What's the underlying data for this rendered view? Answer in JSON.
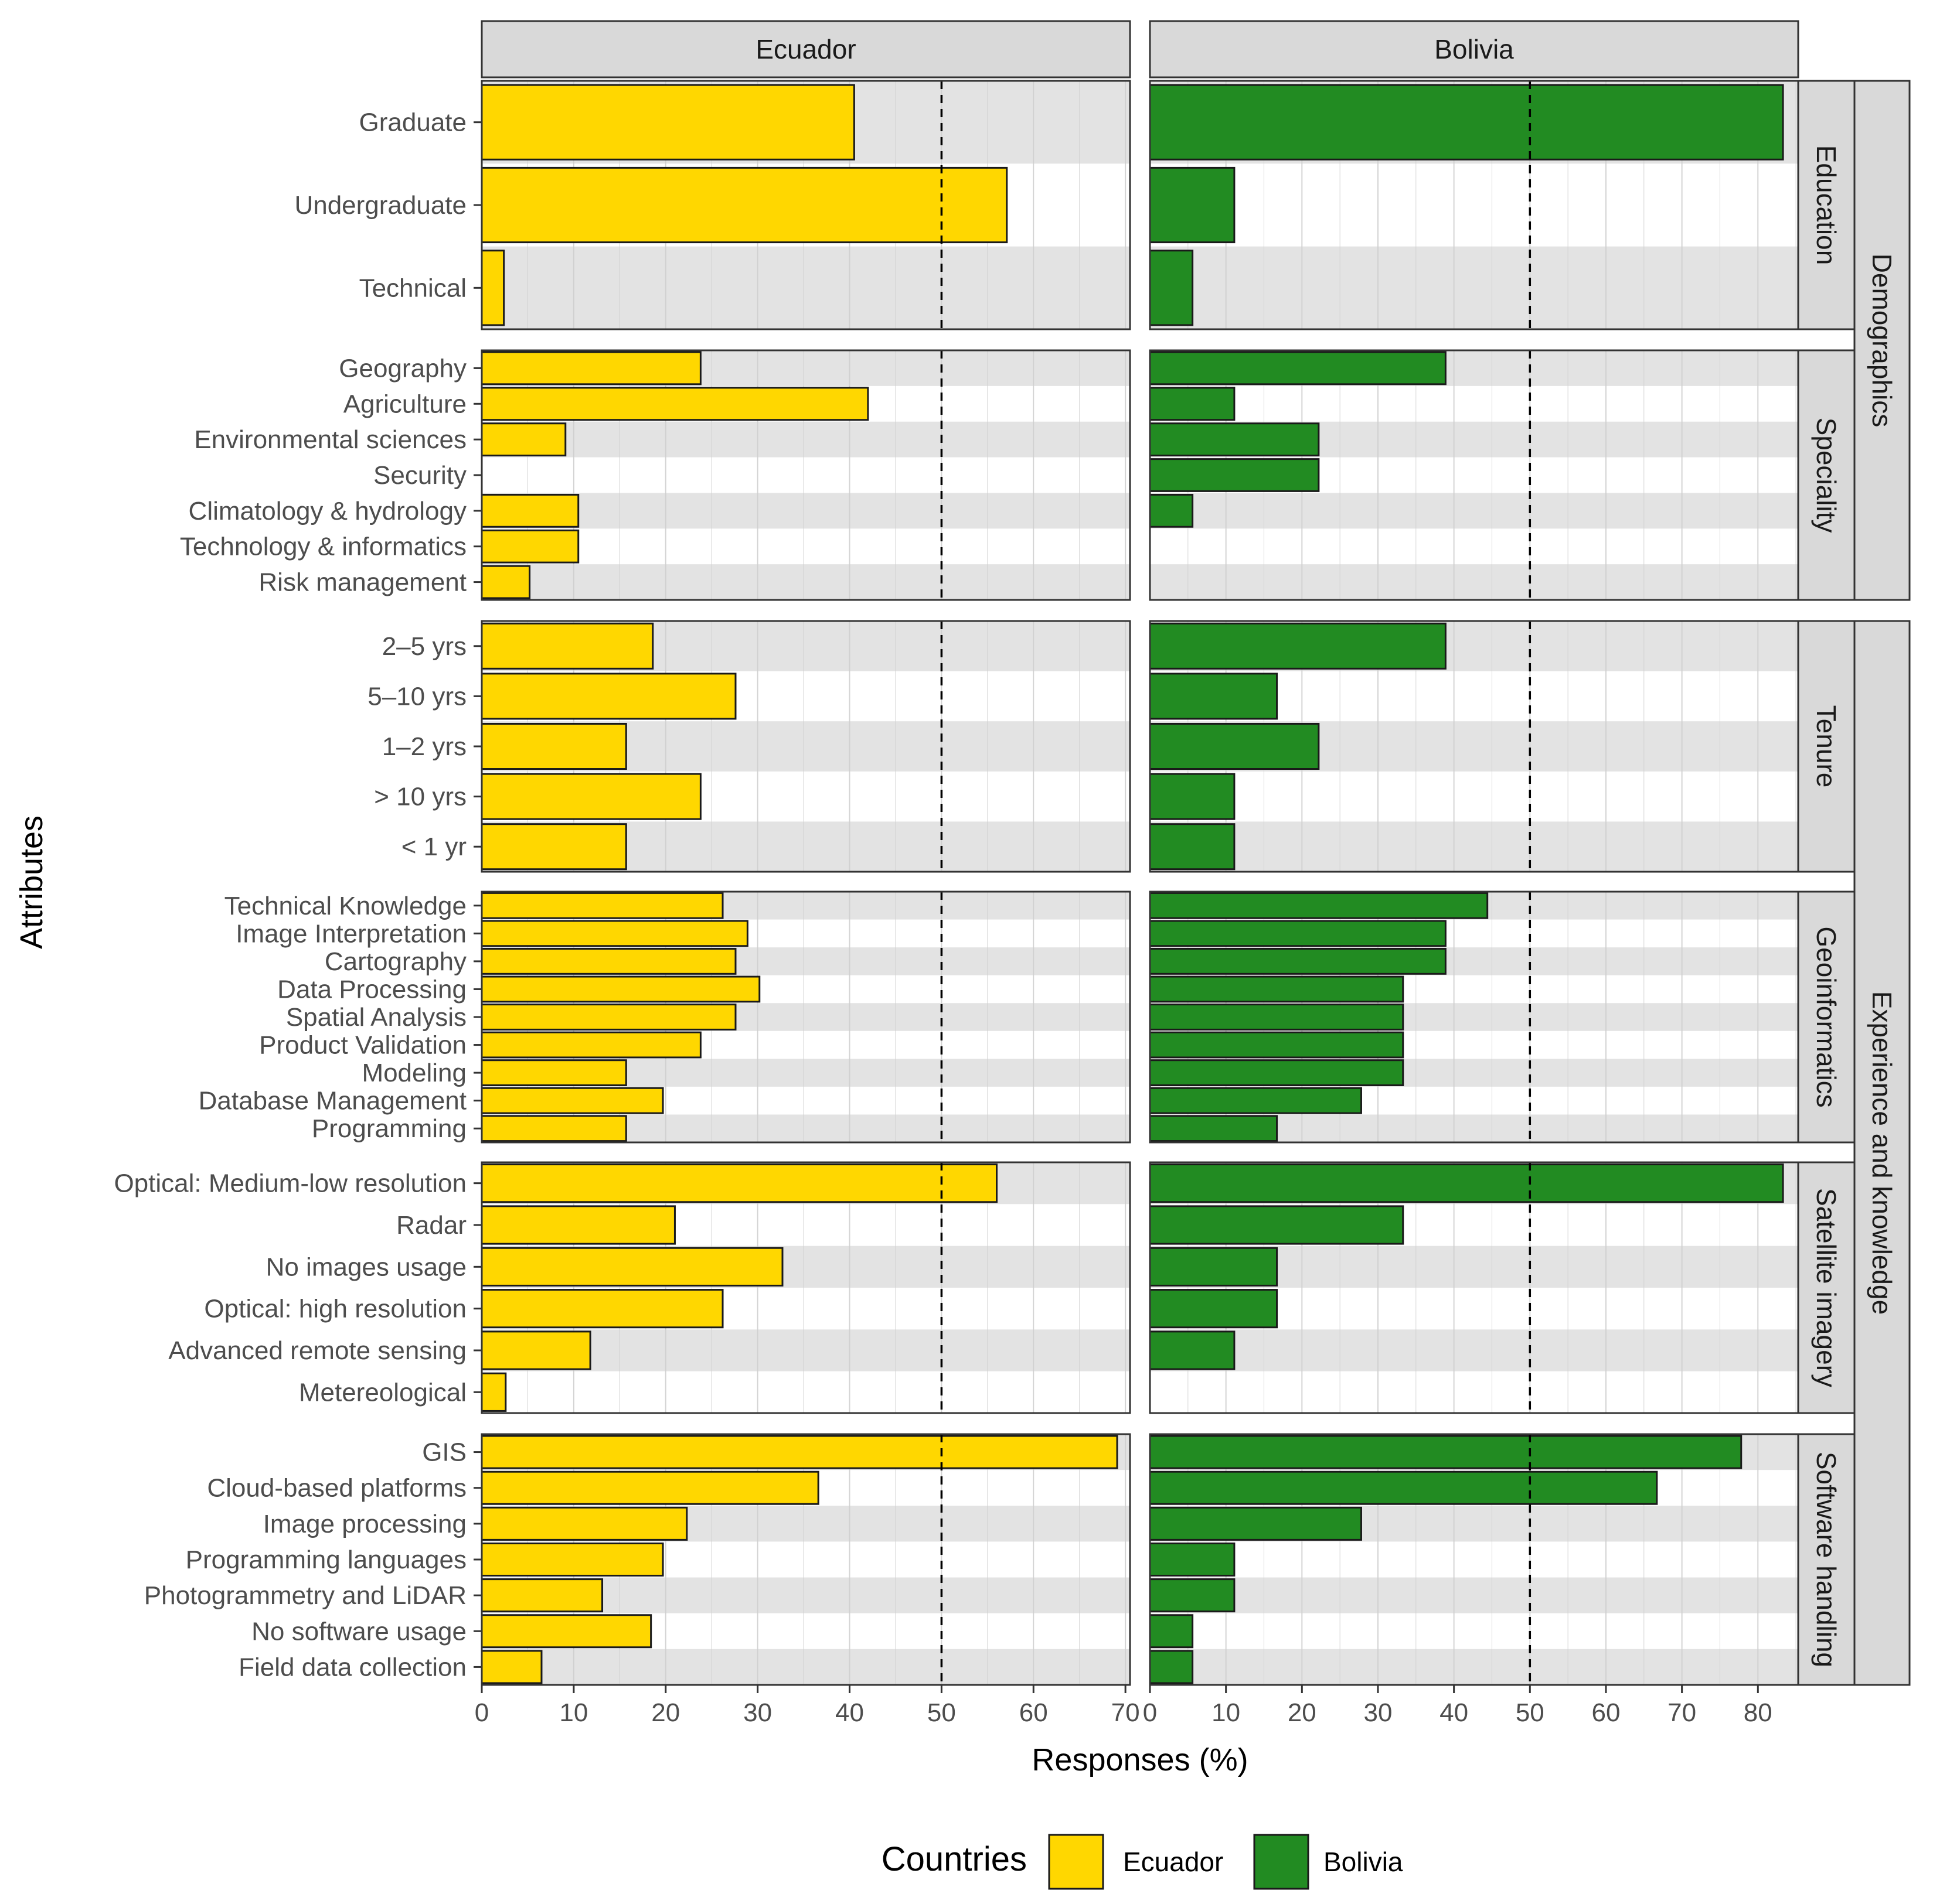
{
  "chart_data": {
    "type": "bar",
    "orientation": "horizontal",
    "xlabel": "Responses (%)",
    "ylabel": "Attributes",
    "reference_line": 50,
    "legend": {
      "title": "Countries",
      "position": "bottom",
      "entries": [
        "Ecuador",
        "Bolivia"
      ]
    },
    "colors": {
      "Ecuador": "#FFD700",
      "Bolivia": "#228B22"
    },
    "panels": [
      {
        "name": "Ecuador",
        "color_key": "Ecuador",
        "xlim": [
          0,
          70.5
        ],
        "ticks": [
          0,
          10,
          20,
          30,
          40,
          50,
          60,
          70
        ]
      },
      {
        "name": "Bolivia",
        "color_key": "Bolivia",
        "xlim": [
          0,
          85.3
        ],
        "ticks": [
          0,
          10,
          20,
          30,
          40,
          50,
          60,
          70,
          80
        ]
      }
    ],
    "outer_groups": [
      {
        "label": "Demographics",
        "rows": [
          "Education",
          "Speciality"
        ]
      },
      {
        "label": "Experience and knowledge",
        "rows": [
          "Tenure",
          "Geoinformatics",
          "Satellite imagery",
          "Software handling"
        ]
      }
    ],
    "rows": [
      {
        "group": "Education",
        "categories": [
          "Graduate",
          "Undergraduate",
          "Technical"
        ],
        "Ecuador": [
          40.5,
          57.1,
          2.4
        ],
        "Bolivia": [
          83.3,
          11.1,
          5.6
        ]
      },
      {
        "group": "Speciality",
        "categories": [
          "Geography",
          "Agriculture",
          "Environmental sciences",
          "Security",
          "Climatology & hydrology",
          "Technology & informatics",
          "Risk management"
        ],
        "Ecuador": [
          23.8,
          42.0,
          9.1,
          0,
          10.5,
          10.5,
          5.2
        ],
        "Bolivia": [
          38.9,
          11.1,
          22.2,
          22.2,
          5.6,
          0,
          0
        ]
      },
      {
        "group": "Tenure",
        "categories": [
          "2–5 yrs",
          "5–10 yrs",
          "1–2 yrs",
          "> 10 yrs",
          "< 1 yr"
        ],
        "Ecuador": [
          18.6,
          27.6,
          15.7,
          23.8,
          15.7
        ],
        "Bolivia": [
          38.9,
          16.7,
          22.2,
          11.1,
          11.1
        ]
      },
      {
        "group": "Geoinformatics",
        "categories": [
          "Technical Knowledge",
          "Image Interpretation",
          "Cartography",
          "Data Processing",
          "Spatial Analysis",
          "Product Validation",
          "Modeling",
          "Database Management",
          "Programming"
        ],
        "Ecuador": [
          26.2,
          28.9,
          27.6,
          30.2,
          27.6,
          23.8,
          15.7,
          19.7,
          15.7
        ],
        "Bolivia": [
          44.4,
          38.9,
          38.9,
          33.3,
          33.3,
          33.3,
          33.3,
          27.8,
          16.7
        ]
      },
      {
        "group": "Satellite imagery",
        "categories": [
          "Optical: Medium-low resolution",
          "Radar",
          "No images usage",
          "Optical: high resolution",
          "Advanced remote sensing",
          "Metereological"
        ],
        "Ecuador": [
          56.0,
          21.0,
          32.7,
          26.2,
          11.8,
          2.6
        ],
        "Bolivia": [
          83.3,
          33.3,
          16.7,
          16.7,
          11.1,
          0
        ]
      },
      {
        "group": "Software handling",
        "categories": [
          "GIS",
          "Cloud-based platforms",
          "Image processing",
          "Programming languages",
          "Photogrammetry and LiDAR",
          "No software usage",
          "Field data collection"
        ],
        "Ecuador": [
          69.1,
          36.6,
          22.3,
          19.7,
          13.1,
          18.4,
          6.5
        ],
        "Bolivia": [
          77.8,
          66.7,
          27.8,
          11.1,
          11.1,
          5.6,
          5.6
        ]
      }
    ]
  }
}
